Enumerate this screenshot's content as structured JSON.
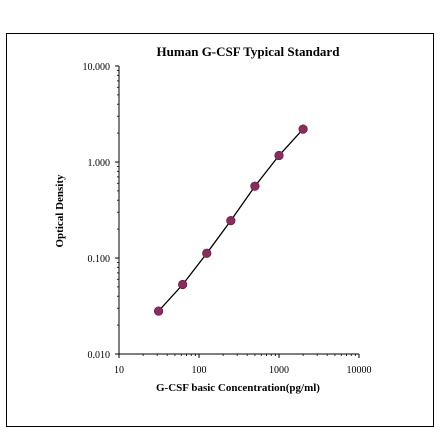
{
  "chart_data": {
    "type": "scatter",
    "title": "Human  G-CSF Typical Standard",
    "xlabel": "G-CSF basic Concentration(pg/ml)",
    "ylabel": "Optical Density",
    "x_scale": "log",
    "y_scale": "log",
    "xlim": [
      10,
      10000
    ],
    "ylim": [
      0.01,
      10
    ],
    "x_ticks": [
      "10",
      "100",
      "1000",
      "10000"
    ],
    "y_ticks": [
      "10.000",
      "1.000",
      "0.100",
      "0.010"
    ],
    "grid": false,
    "legend": "none",
    "series": [
      {
        "x": [
          31.25,
          62.5,
          125,
          250,
          500,
          1000,
          2000
        ],
        "y": [
          0.028,
          0.053,
          0.112,
          0.245,
          0.56,
          1.17,
          2.2
        ],
        "marker_color": "#8b2b5e",
        "line_color": "#000000",
        "fit_line": true
      }
    ]
  }
}
